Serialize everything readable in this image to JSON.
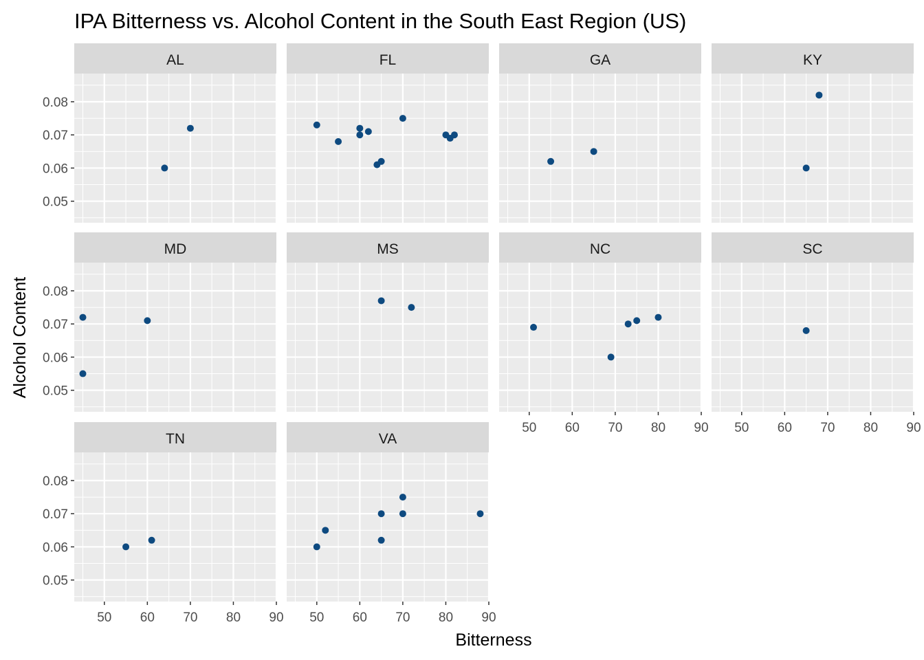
{
  "chart_data": {
    "type": "scatter",
    "title": "IPA Bitterness vs. Alcohol Content in the South East Region (US)",
    "xlabel": "Bitterness",
    "ylabel": "Alcohol Content",
    "xlim": [
      43,
      90
    ],
    "ylim": [
      0.0435,
      0.0885
    ],
    "x_ticks": [
      50,
      60,
      70,
      80,
      90
    ],
    "y_ticks": [
      0.05,
      0.06,
      0.07,
      0.08
    ],
    "x_tick_labels": [
      "50",
      "60",
      "70",
      "80",
      "90"
    ],
    "y_tick_labels": [
      "0.05",
      "0.06",
      "0.07",
      "0.08"
    ],
    "grid": true,
    "facet_columns": 4,
    "point_color": "#0e4a80",
    "panel_background": "#ebebeb",
    "strip_background": "#d9d9d9",
    "panels": [
      {
        "label": "AL",
        "points": [
          [
            64,
            0.06
          ],
          [
            70,
            0.072
          ]
        ]
      },
      {
        "label": "FL",
        "points": [
          [
            50,
            0.073
          ],
          [
            55,
            0.068
          ],
          [
            60,
            0.072
          ],
          [
            60,
            0.07
          ],
          [
            62,
            0.071
          ],
          [
            64,
            0.061
          ],
          [
            65,
            0.062
          ],
          [
            70,
            0.075
          ],
          [
            80,
            0.07
          ],
          [
            81,
            0.069
          ],
          [
            82,
            0.07
          ]
        ]
      },
      {
        "label": "GA",
        "points": [
          [
            55,
            0.062
          ],
          [
            65,
            0.065
          ]
        ]
      },
      {
        "label": "KY",
        "points": [
          [
            65,
            0.06
          ],
          [
            68,
            0.082
          ]
        ]
      },
      {
        "label": "MD",
        "points": [
          [
            45,
            0.072
          ],
          [
            45,
            0.055
          ],
          [
            60,
            0.071
          ]
        ]
      },
      {
        "label": "MS",
        "points": [
          [
            65,
            0.077
          ],
          [
            72,
            0.075
          ]
        ]
      },
      {
        "label": "NC",
        "points": [
          [
            51,
            0.069
          ],
          [
            69,
            0.06
          ],
          [
            73,
            0.07
          ],
          [
            75,
            0.071
          ],
          [
            80,
            0.072
          ]
        ]
      },
      {
        "label": "SC",
        "points": [
          [
            65,
            0.068
          ]
        ]
      },
      {
        "label": "TN",
        "points": [
          [
            55,
            0.06
          ],
          [
            61,
            0.062
          ]
        ]
      },
      {
        "label": "VA",
        "points": [
          [
            50,
            0.06
          ],
          [
            52,
            0.065
          ],
          [
            65,
            0.07
          ],
          [
            65,
            0.062
          ],
          [
            70,
            0.075
          ],
          [
            70,
            0.07
          ],
          [
            88,
            0.07
          ]
        ]
      }
    ]
  }
}
